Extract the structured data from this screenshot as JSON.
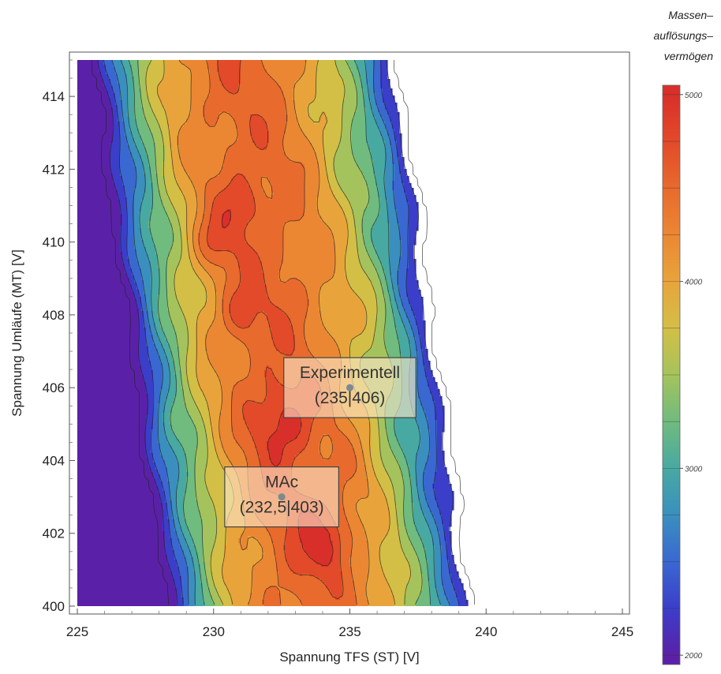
{
  "chart_data": {
    "type": "contour",
    "xlabel": "Spannung TFS (ST) [V]",
    "ylabel": "Spannung  Umläufe  (MT) [V]",
    "xlim": [
      225,
      245
    ],
    "ylim": [
      400,
      415
    ],
    "xticks": [
      225,
      230,
      235,
      240,
      245
    ],
    "yticks": [
      400,
      402,
      404,
      406,
      408,
      410,
      412,
      414
    ],
    "colorbar": {
      "title_lines": [
        "Massen–",
        "auflösungs–",
        "vermögen"
      ],
      "range": [
        1950,
        5050
      ],
      "ticks": [
        2000,
        3000,
        4000,
        5000
      ],
      "levels": [
        2000,
        2250,
        2500,
        2750,
        3000,
        3250,
        3500,
        3750,
        4000,
        4250,
        4500,
        4750,
        5000
      ],
      "colors": [
        "#5a21a8",
        "#3b3ec9",
        "#3a68d1",
        "#3a8fbe",
        "#48a9a2",
        "#70bb7e",
        "#a5c35c",
        "#d3bf45",
        "#e8a43b",
        "#eb8733",
        "#e86a2d",
        "#e24a29",
        "#d92f2a"
      ]
    },
    "annotations": [
      {
        "name": "Experimentell",
        "label_lines": [
          "Experimentell",
          "(235|406)"
        ],
        "x": 235,
        "y": 406
      },
      {
        "name": "MAc",
        "label_lines": [
          "MAc",
          "(232,5|403)"
        ],
        "x": 232.5,
        "y": 403
      }
    ],
    "grid": false,
    "legend": "colorbar-right"
  }
}
